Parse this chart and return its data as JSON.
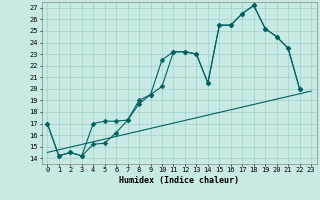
{
  "background_color": "#c8eae4",
  "grid_color": "#a0d0cc",
  "line_color": "#006060",
  "xlabel": "Humidex (Indice chaleur)",
  "xlim": [
    -0.5,
    23.5
  ],
  "ylim": [
    13.5,
    27.5
  ],
  "yticks": [
    14,
    15,
    16,
    17,
    18,
    19,
    20,
    21,
    22,
    23,
    24,
    25,
    26,
    27
  ],
  "xticks": [
    0,
    1,
    2,
    3,
    4,
    5,
    6,
    7,
    8,
    9,
    10,
    11,
    12,
    13,
    14,
    15,
    16,
    17,
    18,
    19,
    20,
    21,
    22,
    23
  ],
  "line1_x": [
    0,
    1,
    2,
    3,
    4,
    5,
    6,
    7,
    8,
    9,
    10,
    11,
    12,
    13,
    14,
    15,
    16,
    17,
    18,
    19,
    20,
    21,
    22
  ],
  "line1_y": [
    17,
    14.2,
    14.5,
    14.2,
    17.0,
    17.2,
    17.2,
    17.3,
    19.0,
    19.5,
    22.5,
    23.2,
    23.2,
    23.0,
    20.5,
    25.5,
    25.5,
    26.5,
    27.2,
    25.2,
    24.5,
    23.5,
    20.0
  ],
  "line2_x": [
    0,
    1,
    2,
    3,
    4,
    5,
    6,
    7,
    8,
    9,
    10,
    11,
    12,
    13,
    14,
    15,
    16,
    17,
    18,
    19,
    20,
    21,
    22
  ],
  "line2_y": [
    17,
    14.2,
    14.5,
    14.2,
    15.2,
    15.3,
    16.2,
    17.3,
    18.7,
    19.5,
    20.2,
    23.2,
    23.2,
    23.0,
    20.5,
    25.5,
    25.5,
    26.5,
    27.2,
    25.2,
    24.5,
    23.5,
    20.0
  ],
  "line3_x": [
    0,
    23
  ],
  "line3_y": [
    14.5,
    19.8
  ],
  "marker_size": 2.5,
  "linewidth": 0.8,
  "tick_fontsize": 5.0,
  "label_fontsize": 6.0
}
